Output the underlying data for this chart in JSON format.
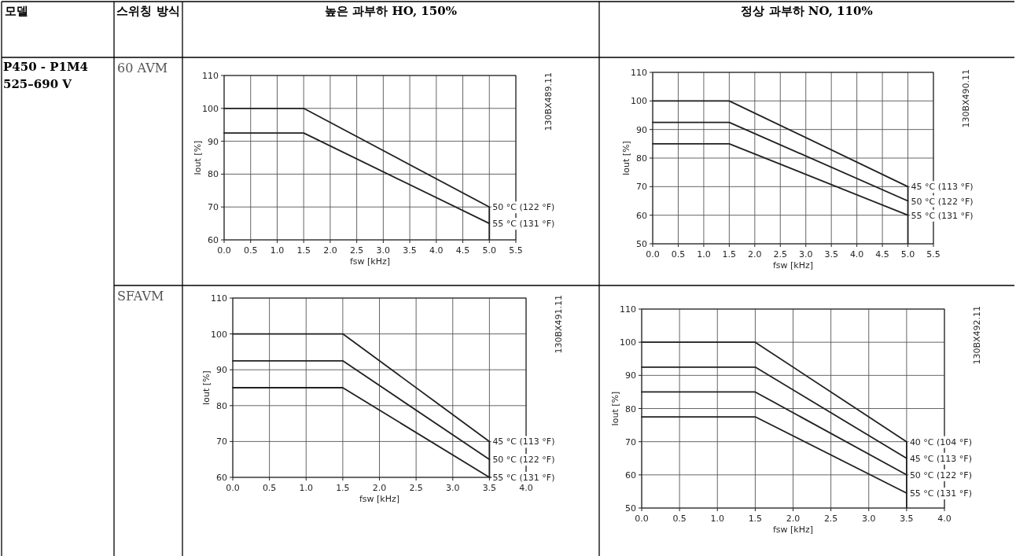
{
  "chart_data": [
    {
      "type": "line",
      "title": "높은 과부하 HO, 150%",
      "subtitle": "60 AVM",
      "xlabel": "fsw [kHz]",
      "ylabel": "Iout [%]",
      "annotations": [
        "130BX489.11",
        "모델",
        "스위칭 방식",
        "P450 - P1M4 525–690 V"
      ],
      "x": [
        0,
        1.5,
        5
      ],
      "series": [
        {
          "name": "50 °C (122 °F)",
          "color": "#231f20",
          "values": [
            100,
            100,
            70
          ]
        },
        {
          "name": "55 °C (131 °F)",
          "color": "#231f20",
          "values": [
            92.5,
            92.5,
            65
          ]
        }
      ],
      "xlim": [
        0,
        5.5
      ],
      "xticks": [
        {
          "value": 0,
          "label": "0.0"
        },
        0.5,
        {
          "value": 1,
          "label": "1.0"
        },
        1.5,
        {
          "value": 2,
          "label": "2.0"
        },
        2.5,
        {
          "value": 3,
          "label": "3.0"
        },
        3.5,
        {
          "value": 4,
          "label": "4.0"
        },
        4.5,
        {
          "value": 5,
          "label": "5.0"
        },
        5.5
      ],
      "ylim": [
        60,
        110
      ],
      "yticks": [
        60,
        70,
        80,
        90,
        100,
        110
      ],
      "ref_lines": [
        {
          "axis": "x",
          "value": 5,
          "color": "#231f20"
        }
      ],
      "grid": true
    },
    {
      "type": "line",
      "title": "정상 과부하 NO, 110%",
      "xlabel": "fsw [kHz]",
      "ylabel": "Iout [%]",
      "annotations": [
        "130BX490.11"
      ],
      "x": [
        0,
        1.5,
        5
      ],
      "series": [
        {
          "name": "45 °C (113 °F)",
          "color": "#231f20",
          "values": [
            100,
            100,
            70
          ]
        },
        {
          "name": "50 °C (122 °F)",
          "color": "#231f20",
          "values": [
            92.5,
            92.5,
            65
          ]
        },
        {
          "name": "55 °C (131 °F)",
          "color": "#231f20",
          "values": [
            85,
            85,
            60
          ]
        }
      ],
      "xlim": [
        0,
        5.5
      ],
      "xticks": [
        {
          "value": 0,
          "label": "0.0"
        },
        0.5,
        {
          "value": 1,
          "label": "1.0"
        },
        1.5,
        {
          "value": 2,
          "label": "2.0"
        },
        2.5,
        {
          "value": 3,
          "label": "3.0"
        },
        3.5,
        {
          "value": 4,
          "label": "4.0"
        },
        4.5,
        {
          "value": 5,
          "label": "5.0"
        },
        5.5
      ],
      "ylim": [
        50,
        110
      ],
      "yticks": [
        50,
        60,
        70,
        80,
        90,
        100,
        110
      ],
      "ref_lines": [
        {
          "axis": "x",
          "value": 5,
          "color": "#231f20"
        }
      ],
      "grid": true
    },
    {
      "type": "line",
      "subtitle": "SFAVM",
      "xlabel": "fsw [kHz]",
      "ylabel": "Iout [%]",
      "annotations": [
        "130BX491.11"
      ],
      "x": [
        0,
        1.5,
        3.5
      ],
      "series": [
        {
          "name": "45 °C (113 °F)",
          "color": "#231f20",
          "values": [
            100,
            100,
            70
          ]
        },
        {
          "name": "50 °C (122 °F)",
          "color": "#231f20",
          "values": [
            92.5,
            92.5,
            65
          ]
        },
        {
          "name": "55 °C (131 °F)",
          "color": "#231f20",
          "values": [
            85,
            85,
            60
          ]
        }
      ],
      "xlim": [
        0,
        4
      ],
      "xticks": [
        {
          "value": 0,
          "label": "0.0"
        },
        0.5,
        {
          "value": 1,
          "label": "1.0"
        },
        1.5,
        {
          "value": 2,
          "label": "2.0"
        },
        2.5,
        {
          "value": 3,
          "label": "3.0"
        },
        3.5,
        {
          "value": 4,
          "label": "4.0"
        }
      ],
      "ylim": [
        60,
        110
      ],
      "yticks": [
        60,
        70,
        80,
        90,
        100,
        110
      ],
      "ref_lines": [
        {
          "axis": "x",
          "value": 3.5,
          "color": "#231f20"
        }
      ],
      "grid": true
    },
    {
      "type": "line",
      "xlabel": "fsw [kHz]",
      "ylabel": "Iout [%]",
      "annotations": [
        "130BX492.11"
      ],
      "x": [
        0,
        1.5,
        3.5
      ],
      "series": [
        {
          "name": "40 °C (104 °F)",
          "color": "#231f20",
          "values": [
            100,
            100,
            70
          ]
        },
        {
          "name": "45 °C (113 °F)",
          "color": "#231f20",
          "values": [
            92.5,
            92.5,
            65
          ]
        },
        {
          "name": "50 °C (122 °F)",
          "color": "#231f20",
          "values": [
            85,
            85,
            60
          ]
        },
        {
          "name": "55 °C (131 °F)",
          "color": "#231f20",
          "values": [
            77.5,
            77.5,
            54.5
          ]
        }
      ],
      "xlim": [
        0,
        4
      ],
      "xticks": [
        {
          "value": 0,
          "label": "0.0"
        },
        0.5,
        {
          "value": 1,
          "label": "1.0"
        },
        1.5,
        {
          "value": 2,
          "label": "2.0"
        },
        2.5,
        {
          "value": 3,
          "label": "3.0"
        },
        3.5,
        {
          "value": 4,
          "label": "4.0"
        }
      ],
      "ylim": [
        50,
        110
      ],
      "yticks": [
        50,
        60,
        70,
        80,
        90,
        100,
        110
      ],
      "ref_lines": [
        {
          "axis": "x",
          "value": 3.5,
          "color": "#231f20"
        }
      ],
      "grid": true
    }
  ]
}
